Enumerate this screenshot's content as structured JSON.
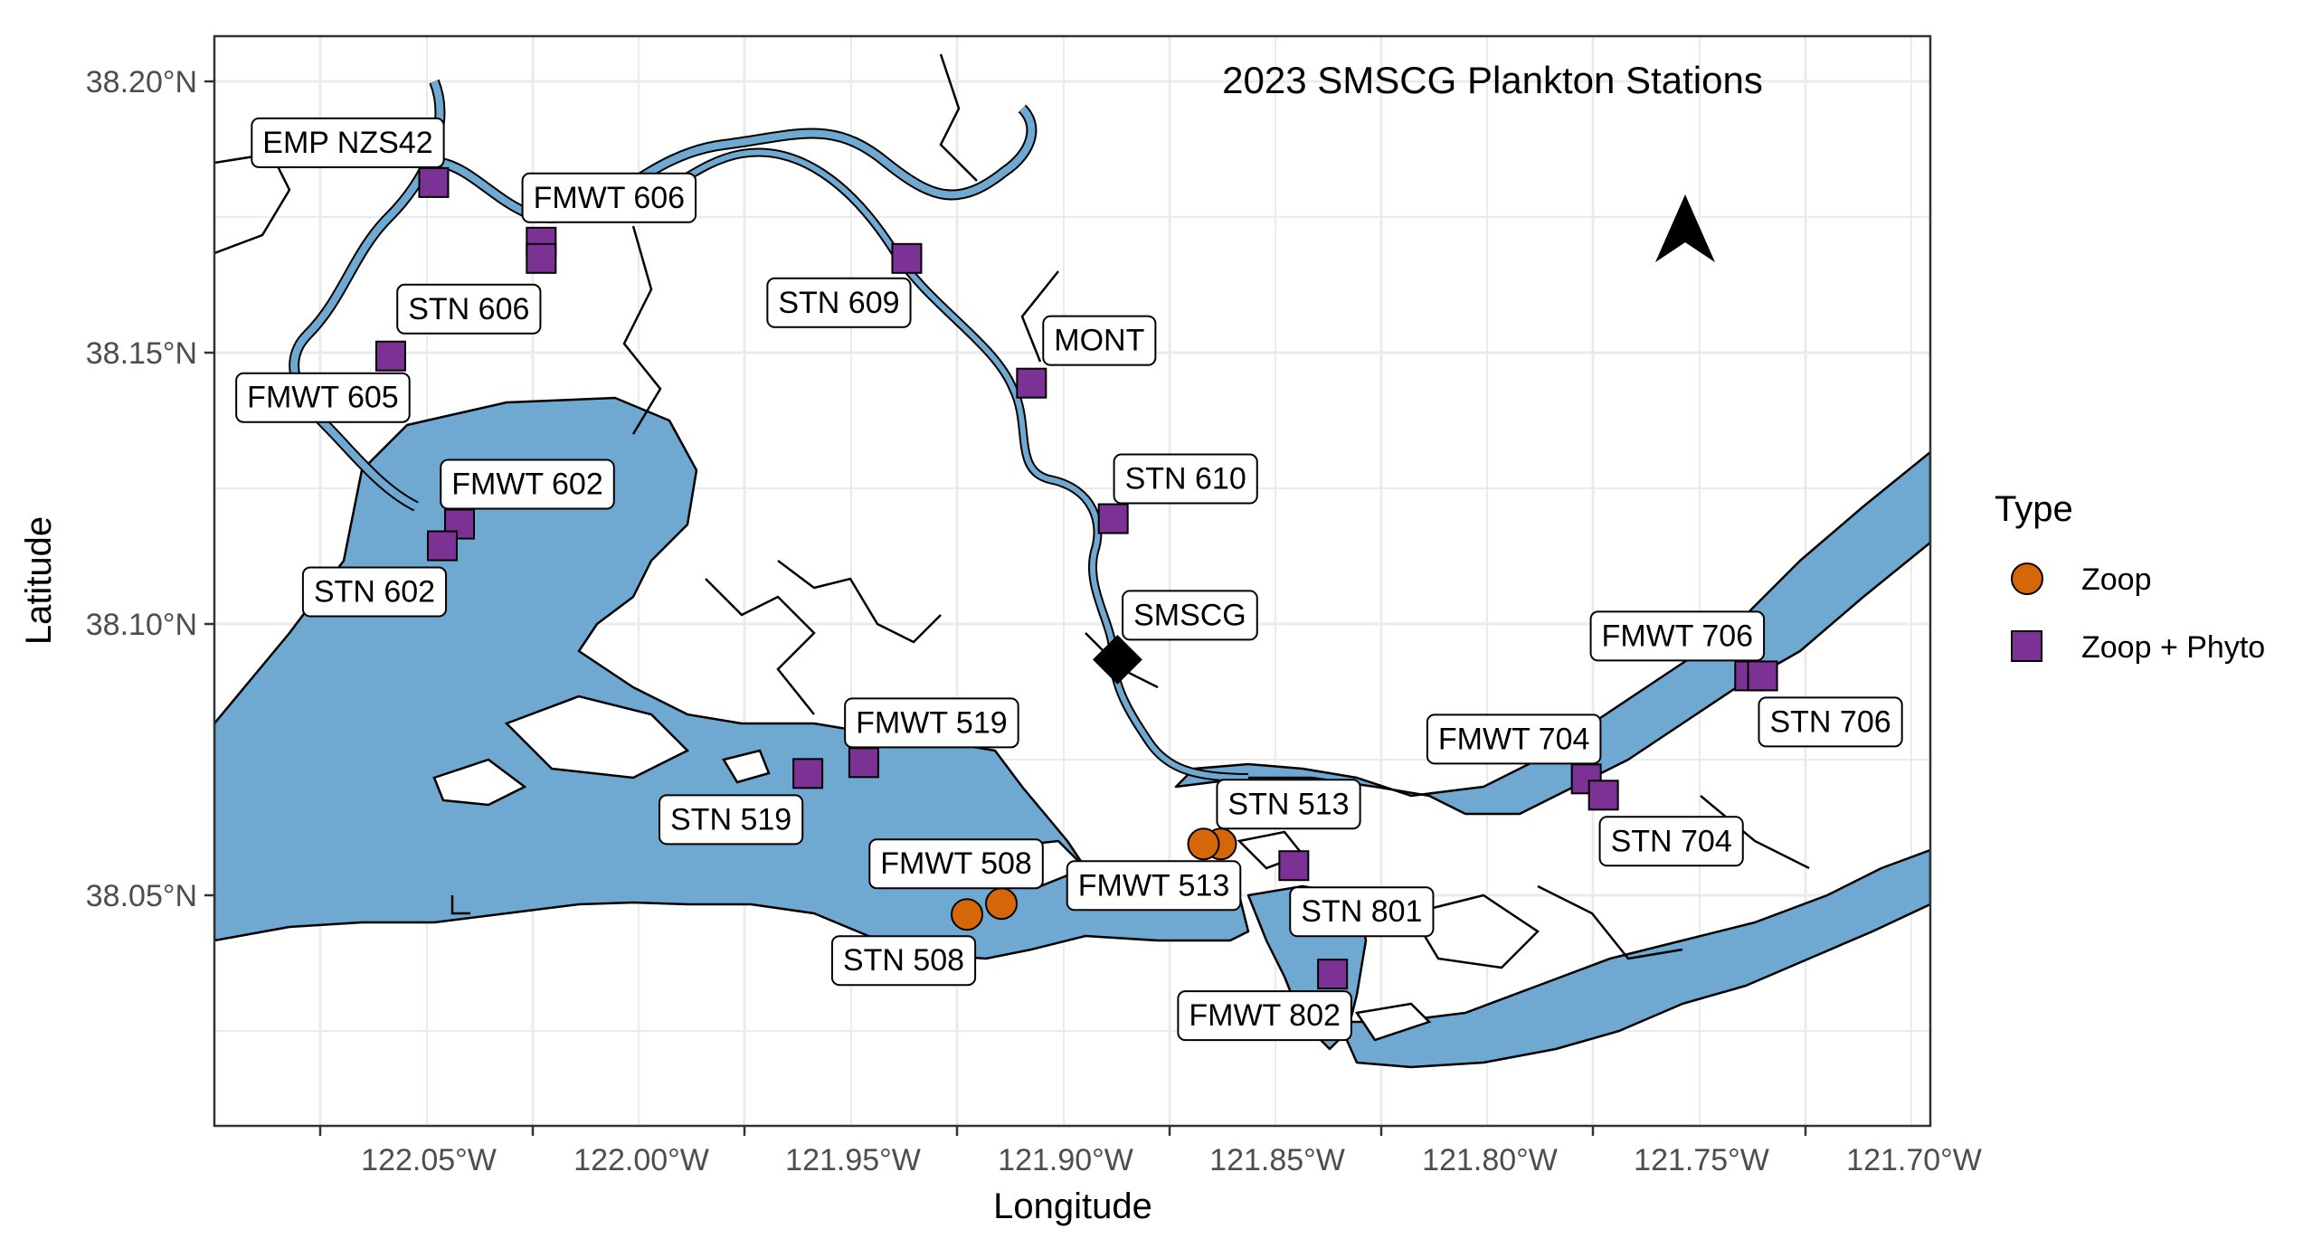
{
  "map": {
    "title": "2023 SMSCG Plankton Stations",
    "x_axis_title": "Longitude",
    "y_axis_title": "Latitude",
    "x_ticks": [
      "122.05°W",
      "122.00°W",
      "121.95°W",
      "121.90°W",
      "121.85°W",
      "121.80°W",
      "121.75°W",
      "121.70°W"
    ],
    "y_ticks": [
      "38.20°N",
      "38.15°N",
      "38.10°N",
      "38.05°N"
    ],
    "extent": {
      "lon": [
        -122.098,
        -121.699
      ],
      "lat": [
        38.007,
        38.208
      ]
    },
    "grid": true,
    "north_arrow": true,
    "water_color": "#6fa8d0",
    "colors": {
      "zoop": "#d6660a",
      "zoop_phyto": "#7b3294",
      "smscg": "#000000"
    }
  },
  "legend": {
    "title": "Type",
    "items": [
      {
        "label": "Zoop",
        "shape": "circle",
        "color": "#d6660a"
      },
      {
        "label": "Zoop + Phyto",
        "shape": "square",
        "color": "#7b3294"
      }
    ]
  },
  "stations": [
    {
      "name": "EMP NZS42",
      "lon": -122.047,
      "lat": 38.181,
      "type": "Zoop + Phyto"
    },
    {
      "name": "FMWT 606",
      "lon": -122.022,
      "lat": 38.17,
      "type": "Zoop + Phyto"
    },
    {
      "name": "STN 606",
      "lon": -122.022,
      "lat": 38.167,
      "type": "Zoop + Phyto"
    },
    {
      "name": "STN 609",
      "lon": -121.937,
      "lat": 38.167,
      "type": "Zoop + Phyto"
    },
    {
      "name": "FMWT 605",
      "lon": -122.057,
      "lat": 38.149,
      "type": "Zoop + Phyto"
    },
    {
      "name": "MONT",
      "lon": -121.908,
      "lat": 38.144,
      "type": "Zoop + Phyto"
    },
    {
      "name": "FMWT 602",
      "lon": -122.041,
      "lat": 38.118,
      "type": "Zoop + Phyto"
    },
    {
      "name": "STN 602",
      "lon": -122.045,
      "lat": 38.114,
      "type": "Zoop + Phyto"
    },
    {
      "name": "STN 610",
      "lon": -121.889,
      "lat": 38.119,
      "type": "Zoop + Phyto"
    },
    {
      "name": "SMSCG",
      "lon": -121.888,
      "lat": 38.093,
      "type": "SMSCG"
    },
    {
      "name": "FMWT 706",
      "lon": -121.741,
      "lat": 38.09,
      "type": "Zoop + Phyto"
    },
    {
      "name": "STN 706",
      "lon": -121.738,
      "lat": 38.09,
      "type": "Zoop + Phyto"
    },
    {
      "name": "FMWT 519",
      "lon": -121.947,
      "lat": 38.074,
      "type": "Zoop + Phyto"
    },
    {
      "name": "STN 519",
      "lon": -121.96,
      "lat": 38.072,
      "type": "Zoop + Phyto"
    },
    {
      "name": "FMWT 704",
      "lon": -121.779,
      "lat": 38.071,
      "type": "Zoop + Phyto"
    },
    {
      "name": "STN 704",
      "lon": -121.775,
      "lat": 38.068,
      "type": "Zoop + Phyto"
    },
    {
      "name": "STN 513",
      "lon": -121.864,
      "lat": 38.059,
      "type": "Zoop"
    },
    {
      "name": "FMWT 513",
      "lon": -121.868,
      "lat": 38.059,
      "type": "Zoop"
    },
    {
      "name": "STN 801",
      "lon": -121.847,
      "lat": 38.055,
      "type": "Zoop + Phyto"
    },
    {
      "name": "FMWT 508",
      "lon": -121.915,
      "lat": 38.048,
      "type": "Zoop"
    },
    {
      "name": "STN 508",
      "lon": -121.923,
      "lat": 38.046,
      "type": "Zoop"
    },
    {
      "name": "FMWT 802",
      "lon": -121.838,
      "lat": 38.035,
      "type": "Zoop + Phyto"
    }
  ]
}
